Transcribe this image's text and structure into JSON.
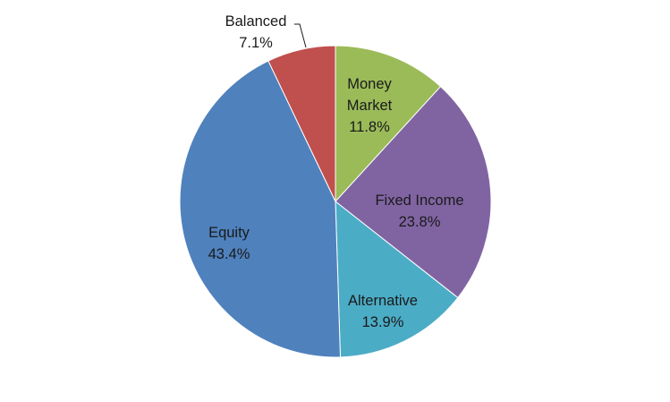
{
  "chart_data": {
    "type": "pie",
    "title": "",
    "slices": [
      {
        "label": "Money Market",
        "value": 11.8,
        "value_label": "11.8%",
        "color": "#9BBB59"
      },
      {
        "label": "Fixed Income",
        "value": 23.8,
        "value_label": "23.8%",
        "color": "#8064A2"
      },
      {
        "label": "Alternative",
        "value": 13.9,
        "value_label": "13.9%",
        "color": "#4BACC6"
      },
      {
        "label": "Equity",
        "value": 43.4,
        "value_label": "43.4%",
        "color": "#4F81BD"
      },
      {
        "label": "Balanced",
        "value": 7.1,
        "value_label": "7.1%",
        "color": "#C0504D"
      }
    ],
    "start": "12 o'clock",
    "direction": "clockwise",
    "legend": "none"
  }
}
